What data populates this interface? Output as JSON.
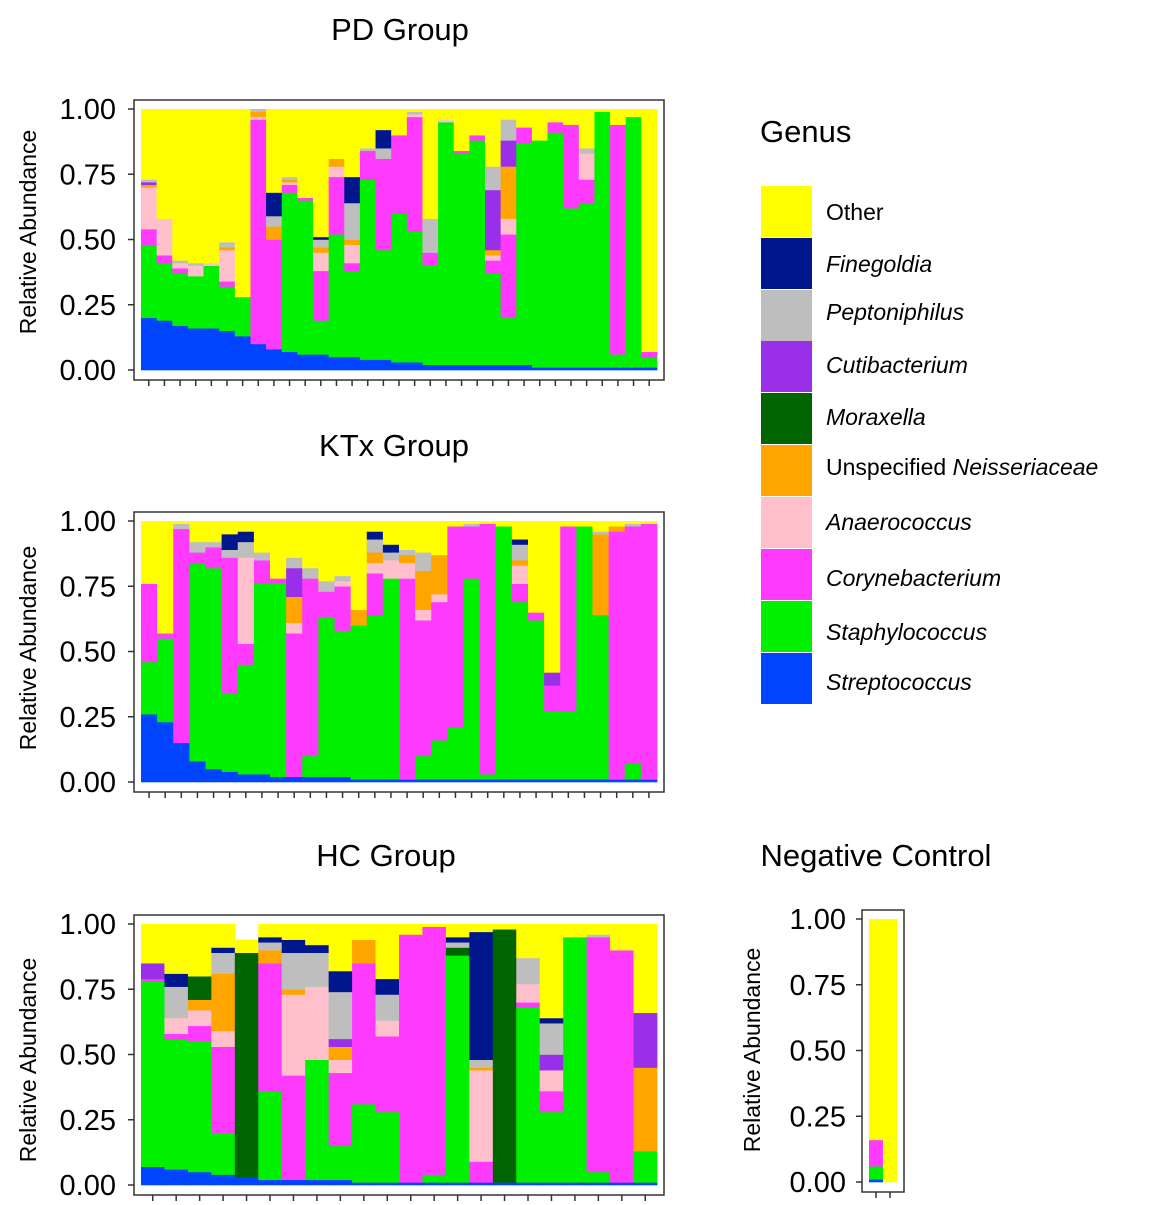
{
  "legend": {
    "title": "Genus",
    "items": [
      {
        "genus": "Other",
        "prefix": "Other",
        "name": "",
        "color": "#FFFF00"
      },
      {
        "genus": "Finegoldia",
        "prefix": "",
        "name": "Finegoldia",
        "color": "#00168C"
      },
      {
        "genus": "Peptoniphilus",
        "prefix": "",
        "name": "Peptoniphilus",
        "color": "#BEBEBE"
      },
      {
        "genus": "Cutibacterium",
        "prefix": "",
        "name": "Cutibacterium",
        "color": "#9A2FEA"
      },
      {
        "genus": "Moraxella",
        "prefix": "",
        "name": "Moraxella",
        "color": "#006400"
      },
      {
        "genus": "Neisseriaceae",
        "prefix": "Unspecified ",
        "name": "Neisseriaceae",
        "color": "#FFA500"
      },
      {
        "genus": "Anaerococcus",
        "prefix": "",
        "name": "Anaerococcus",
        "color": "#FFC0CB"
      },
      {
        "genus": "Corynebacterium",
        "prefix": "",
        "name": "Corynebacterium",
        "color": "#FF3AFF"
      },
      {
        "genus": "Staphylococcus",
        "prefix": "",
        "name": "Staphylococcus",
        "color": "#00F000"
      },
      {
        "genus": "Streptococcus",
        "prefix": "",
        "name": "Streptococcus",
        "color": "#0044FF"
      }
    ]
  },
  "chart_data": [
    {
      "type": "bar",
      "stacked": true,
      "title": "PD Group",
      "ylabel": "Relative Abundance",
      "ylim": [
        0,
        1
      ],
      "yticks": [
        "0.00",
        "0.25",
        "0.50",
        "0.75",
        "1.00"
      ],
      "stack_order": [
        "Streptococcus",
        "Staphylococcus",
        "Corynebacterium",
        "Anaerococcus",
        "Neisseriaceae",
        "Moraxella",
        "Cutibacterium",
        "Peptoniphilus",
        "Finegoldia",
        "Other"
      ],
      "samples": [
        {
          "Streptococcus": 0.2,
          "Staphylococcus": 0.28,
          "Corynebacterium": 0.06,
          "Anaerococcus": 0.16,
          "Neisseriaceae": 0.01,
          "Cutibacterium": 0.01,
          "Peptoniphilus": 0.01
        },
        {
          "Streptococcus": 0.19,
          "Staphylococcus": 0.22,
          "Corynebacterium": 0.03,
          "Anaerococcus": 0.14
        },
        {
          "Streptococcus": 0.17,
          "Staphylococcus": 0.2,
          "Corynebacterium": 0.02,
          "Anaerococcus": 0.02,
          "Peptoniphilus": 0.01
        },
        {
          "Streptococcus": 0.16,
          "Staphylococcus": 0.2,
          "Anaerococcus": 0.04,
          "Peptoniphilus": 0.01
        },
        {
          "Streptococcus": 0.16,
          "Staphylococcus": 0.24,
          "Anaerococcus": 0.01
        },
        {
          "Streptococcus": 0.15,
          "Staphylococcus": 0.17,
          "Corynebacterium": 0.02,
          "Anaerococcus": 0.12,
          "Neisseriaceae": 0.01,
          "Peptoniphilus": 0.02
        },
        {
          "Streptococcus": 0.13,
          "Staphylococcus": 0.15
        },
        {
          "Streptococcus": 0.1,
          "Corynebacterium": 0.86,
          "Anaerococcus": 0.01,
          "Neisseriaceae": 0.02,
          "Peptoniphilus": 0.01
        },
        {
          "Streptococcus": 0.08,
          "Corynebacterium": 0.42,
          "Neisseriaceae": 0.05,
          "Peptoniphilus": 0.04,
          "Finegoldia": 0.09
        },
        {
          "Streptococcus": 0.07,
          "Staphylococcus": 0.61,
          "Corynebacterium": 0.03,
          "Anaerococcus": 0.01,
          "Neisseriaceae": 0.01,
          "Peptoniphilus": 0.01
        },
        {
          "Streptococcus": 0.06,
          "Staphylococcus": 0.59,
          "Corynebacterium": 0.01
        },
        {
          "Streptococcus": 0.06,
          "Staphylococcus": 0.13,
          "Corynebacterium": 0.19,
          "Anaerococcus": 0.07,
          "Neisseriaceae": 0.02,
          "Peptoniphilus": 0.03,
          "Finegoldia": 0.01
        },
        {
          "Streptococcus": 0.05,
          "Staphylococcus": 0.47,
          "Corynebacterium": 0.22,
          "Anaerococcus": 0.04,
          "Neisseriaceae": 0.03
        },
        {
          "Streptococcus": 0.05,
          "Staphylococcus": 0.33,
          "Corynebacterium": 0.03,
          "Anaerococcus": 0.07,
          "Neisseriaceae": 0.02,
          "Peptoniphilus": 0.14,
          "Finegoldia": 0.1
        },
        {
          "Streptococcus": 0.04,
          "Staphylococcus": 0.69,
          "Corynebacterium": 0.11,
          "Peptoniphilus": 0.01
        },
        {
          "Streptococcus": 0.04,
          "Staphylococcus": 0.42,
          "Corynebacterium": 0.35,
          "Peptoniphilus": 0.04,
          "Finegoldia": 0.07
        },
        {
          "Streptococcus": 0.03,
          "Staphylococcus": 0.57,
          "Corynebacterium": 0.3
        },
        {
          "Streptococcus": 0.03,
          "Staphylococcus": 0.5,
          "Corynebacterium": 0.44,
          "Anaerococcus": 0.01,
          "Peptoniphilus": 0.01
        },
        {
          "Streptococcus": 0.02,
          "Staphylococcus": 0.38,
          "Corynebacterium": 0.05,
          "Peptoniphilus": 0.13
        },
        {
          "Streptococcus": 0.02,
          "Staphylococcus": 0.93,
          "Anaerococcus": 0.01
        },
        {
          "Streptococcus": 0.02,
          "Staphylococcus": 0.81,
          "Corynebacterium": 0.01
        },
        {
          "Streptococcus": 0.02,
          "Staphylococcus": 0.86,
          "Corynebacterium": 0.02
        },
        {
          "Streptococcus": 0.02,
          "Staphylococcus": 0.35,
          "Corynebacterium": 0.05,
          "Anaerococcus": 0.02,
          "Neisseriaceae": 0.02,
          "Cutibacterium": 0.23,
          "Peptoniphilus": 0.09
        },
        {
          "Streptococcus": 0.02,
          "Staphylococcus": 0.18,
          "Corynebacterium": 0.32,
          "Anaerococcus": 0.06,
          "Neisseriaceae": 0.2,
          "Cutibacterium": 0.1,
          "Peptoniphilus": 0.08
        },
        {
          "Streptococcus": 0.02,
          "Staphylococcus": 0.85,
          "Corynebacterium": 0.06
        },
        {
          "Streptococcus": 0.01,
          "Staphylococcus": 0.87
        },
        {
          "Streptococcus": 0.01,
          "Staphylococcus": 0.9,
          "Corynebacterium": 0.04
        },
        {
          "Streptococcus": 0.01,
          "Staphylococcus": 0.61,
          "Corynebacterium": 0.32
        },
        {
          "Streptococcus": 0.01,
          "Staphylococcus": 0.63,
          "Corynebacterium": 0.09,
          "Anaerococcus": 0.1,
          "Peptoniphilus": 0.02
        },
        {
          "Streptococcus": 0.01,
          "Staphylococcus": 0.98
        },
        {
          "Streptococcus": 0.01,
          "Staphylococcus": 0.05,
          "Corynebacterium": 0.88
        },
        {
          "Streptococcus": 0.01,
          "Staphylococcus": 0.96
        },
        {
          "Streptococcus": 0.01,
          "Staphylococcus": 0.04,
          "Corynebacterium": 0.02
        }
      ]
    },
    {
      "type": "bar",
      "stacked": true,
      "title": "KTx Group",
      "ylabel": "Relative Abundance",
      "ylim": [
        0,
        1
      ],
      "yticks": [
        "0.00",
        "0.25",
        "0.50",
        "0.75",
        "1.00"
      ],
      "stack_order": [
        "Streptococcus",
        "Staphylococcus",
        "Corynebacterium",
        "Anaerococcus",
        "Neisseriaceae",
        "Moraxella",
        "Cutibacterium",
        "Peptoniphilus",
        "Finegoldia",
        "Other"
      ],
      "samples": [
        {
          "Streptococcus": 0.26,
          "Staphylococcus": 0.2,
          "Corynebacterium": 0.3
        },
        {
          "Streptococcus": 0.23,
          "Staphylococcus": 0.32,
          "Corynebacterium": 0.02
        },
        {
          "Streptococcus": 0.15,
          "Corynebacterium": 0.82,
          "Peptoniphilus": 0.02
        },
        {
          "Streptococcus": 0.08,
          "Staphylococcus": 0.76,
          "Corynebacterium": 0.04,
          "Peptoniphilus": 0.04
        },
        {
          "Streptococcus": 0.05,
          "Staphylococcus": 0.77,
          "Corynebacterium": 0.08,
          "Peptoniphilus": 0.02
        },
        {
          "Streptococcus": 0.04,
          "Staphylococcus": 0.3,
          "Corynebacterium": 0.52,
          "Peptoniphilus": 0.03,
          "Finegoldia": 0.06
        },
        {
          "Streptococcus": 0.03,
          "Staphylococcus": 0.42,
          "Corynebacterium": 0.08,
          "Anaerococcus": 0.33,
          "Peptoniphilus": 0.06,
          "Finegoldia": 0.04
        },
        {
          "Streptococcus": 0.03,
          "Staphylococcus": 0.73,
          "Corynebacterium": 0.09,
          "Peptoniphilus": 0.03
        },
        {
          "Streptococcus": 0.02,
          "Staphylococcus": 0.74,
          "Corynebacterium": 0.02
        },
        {
          "Streptococcus": 0.02,
          "Corynebacterium": 0.55,
          "Anaerococcus": 0.04,
          "Neisseriaceae": 0.1,
          "Cutibacterium": 0.11,
          "Peptoniphilus": 0.04
        },
        {
          "Streptococcus": 0.02,
          "Staphylococcus": 0.08,
          "Corynebacterium": 0.68,
          "Peptoniphilus": 0.04
        },
        {
          "Streptococcus": 0.02,
          "Staphylococcus": 0.61,
          "Corynebacterium": 0.1,
          "Peptoniphilus": 0.04
        },
        {
          "Streptococcus": 0.02,
          "Staphylococcus": 0.56,
          "Corynebacterium": 0.17,
          "Anaerococcus": 0.02,
          "Peptoniphilus": 0.02
        },
        {
          "Streptococcus": 0.01,
          "Staphylococcus": 0.59,
          "Neisseriaceae": 0.06
        },
        {
          "Streptococcus": 0.01,
          "Staphylococcus": 0.63,
          "Corynebacterium": 0.16,
          "Anaerococcus": 0.04,
          "Neisseriaceae": 0.04,
          "Peptoniphilus": 0.05,
          "Finegoldia": 0.03
        },
        {
          "Streptococcus": 0.01,
          "Staphylococcus": 0.77,
          "Anaerococcus": 0.07,
          "Peptoniphilus": 0.03,
          "Finegoldia": 0.03
        },
        {
          "Streptococcus": 0.01,
          "Corynebacterium": 0.77,
          "Anaerococcus": 0.06,
          "Neisseriaceae": 0.03,
          "Peptoniphilus": 0.02
        },
        {
          "Streptococcus": 0.01,
          "Staphylococcus": 0.09,
          "Corynebacterium": 0.52,
          "Anaerococcus": 0.04,
          "Neisseriaceae": 0.15,
          "Peptoniphilus": 0.07
        },
        {
          "Streptococcus": 0.01,
          "Staphylococcus": 0.15,
          "Corynebacterium": 0.53,
          "Anaerococcus": 0.03,
          "Neisseriaceae": 0.15
        },
        {
          "Streptococcus": 0.01,
          "Staphylococcus": 0.2,
          "Corynebacterium": 0.77
        },
        {
          "Streptococcus": 0.01,
          "Staphylococcus": 0.77,
          "Corynebacterium": 0.2,
          "Peptoniphilus": 0.01
        },
        {
          "Streptococcus": 0.01,
          "Staphylococcus": 0.02,
          "Corynebacterium": 0.96
        },
        {
          "Streptococcus": 0.01,
          "Staphylococcus": 0.97
        },
        {
          "Streptococcus": 0.01,
          "Staphylococcus": 0.68,
          "Corynebacterium": 0.07,
          "Anaerococcus": 0.07,
          "Neisseriaceae": 0.02,
          "Peptoniphilus": 0.06,
          "Finegoldia": 0.02
        },
        {
          "Streptococcus": 0.01,
          "Staphylococcus": 0.61,
          "Corynebacterium": 0.03
        },
        {
          "Streptococcus": 0.01,
          "Staphylococcus": 0.26,
          "Corynebacterium": 0.1,
          "Cutibacterium": 0.05
        },
        {
          "Streptococcus": 0.01,
          "Staphylococcus": 0.26,
          "Corynebacterium": 0.71
        },
        {
          "Streptococcus": 0.01,
          "Staphylococcus": 0.97
        },
        {
          "Streptococcus": 0.01,
          "Staphylococcus": 0.63,
          "Neisseriaceae": 0.31,
          "Peptoniphilus": 0.01
        },
        {
          "Streptococcus": 0.01,
          "Corynebacterium": 0.95,
          "Neisseriaceae": 0.02
        },
        {
          "Streptococcus": 0.01,
          "Staphylococcus": 0.06,
          "Corynebacterium": 0.91,
          "Peptoniphilus": 0.01
        },
        {
          "Streptococcus": 0.01,
          "Corynebacterium": 0.98
        }
      ]
    },
    {
      "type": "bar",
      "stacked": true,
      "title": "HC Group",
      "ylabel": "Relative Abundance",
      "ylim": [
        0,
        1
      ],
      "yticks": [
        "0.00",
        "0.25",
        "0.50",
        "0.75",
        "1.00"
      ],
      "stack_order": [
        "Streptococcus",
        "Staphylococcus",
        "Corynebacterium",
        "Anaerococcus",
        "Neisseriaceae",
        "Moraxella",
        "Cutibacterium",
        "Peptoniphilus",
        "Finegoldia",
        "Other"
      ],
      "samples": [
        {
          "Streptococcus": 0.07,
          "Staphylococcus": 0.71,
          "Corynebacterium": 0.01,
          "Cutibacterium": 0.06
        },
        {
          "Streptococcus": 0.06,
          "Staphylococcus": 0.5,
          "Corynebacterium": 0.02,
          "Anaerococcus": 0.06,
          "Peptoniphilus": 0.12,
          "Finegoldia": 0.05
        },
        {
          "Streptococcus": 0.05,
          "Staphylococcus": 0.5,
          "Corynebacterium": 0.06,
          "Anaerococcus": 0.06,
          "Neisseriaceae": 0.04,
          "Moraxella": 0.09
        },
        {
          "Streptococcus": 0.04,
          "Staphylococcus": 0.16,
          "Corynebacterium": 0.33,
          "Anaerococcus": 0.06,
          "Neisseriaceae": 0.22,
          "Peptoniphilus": 0.08,
          "Finegoldia": 0.02
        },
        {
          "Streptococcus": 0.03,
          "Moraxella": 0.86,
          "Other": 0.05
        },
        {
          "Streptococcus": 0.02,
          "Staphylococcus": 0.34,
          "Corynebacterium": 0.49,
          "Neisseriaceae": 0.05,
          "Peptoniphilus": 0.03,
          "Finegoldia": 0.02
        },
        {
          "Streptococcus": 0.02,
          "Corynebacterium": 0.4,
          "Anaerococcus": 0.31,
          "Neisseriaceae": 0.02,
          "Peptoniphilus": 0.14,
          "Finegoldia": 0.05
        },
        {
          "Streptococcus": 0.02,
          "Staphylococcus": 0.46,
          "Anaerococcus": 0.28,
          "Peptoniphilus": 0.13,
          "Finegoldia": 0.03
        },
        {
          "Streptococcus": 0.02,
          "Staphylococcus": 0.13,
          "Corynebacterium": 0.28,
          "Anaerococcus": 0.05,
          "Neisseriaceae": 0.05,
          "Cutibacterium": 0.03,
          "Peptoniphilus": 0.18,
          "Finegoldia": 0.08
        },
        {
          "Streptococcus": 0.01,
          "Staphylococcus": 0.3,
          "Corynebacterium": 0.54,
          "Neisseriaceae": 0.09
        },
        {
          "Streptococcus": 0.01,
          "Staphylococcus": 0.27,
          "Corynebacterium": 0.29,
          "Anaerococcus": 0.06,
          "Peptoniphilus": 0.1,
          "Finegoldia": 0.06
        },
        {
          "Streptococcus": 0.01,
          "Corynebacterium": 0.95
        },
        {
          "Streptococcus": 0.01,
          "Staphylococcus": 0.03,
          "Corynebacterium": 0.95
        },
        {
          "Streptococcus": 0.01,
          "Staphylococcus": 0.87,
          "Moraxella": 0.03,
          "Peptoniphilus": 0.02,
          "Finegoldia": 0.02
        },
        {
          "Streptococcus": 0.01,
          "Corynebacterium": 0.08,
          "Anaerococcus": 0.35,
          "Neisseriaceae": 0.01,
          "Peptoniphilus": 0.03,
          "Finegoldia": 0.49
        },
        {
          "Streptococcus": 0.01,
          "Moraxella": 0.97
        },
        {
          "Streptococcus": 0.01,
          "Staphylococcus": 0.67,
          "Corynebacterium": 0.02,
          "Anaerococcus": 0.07,
          "Peptoniphilus": 0.1
        },
        {
          "Streptococcus": 0.01,
          "Staphylococcus": 0.27,
          "Corynebacterium": 0.08,
          "Anaerococcus": 0.08,
          "Cutibacterium": 0.06,
          "Peptoniphilus": 0.12,
          "Finegoldia": 0.02
        },
        {
          "Streptococcus": 0.01,
          "Staphylococcus": 0.94
        },
        {
          "Streptococcus": 0.01,
          "Staphylococcus": 0.04,
          "Corynebacterium": 0.9,
          "Peptoniphilus": 0.01
        },
        {
          "Streptococcus": 0.01,
          "Corynebacterium": 0.89
        },
        {
          "Streptococcus": 0.01,
          "Staphylococcus": 0.12,
          "Neisseriaceae": 0.32,
          "Cutibacterium": 0.21
        }
      ]
    },
    {
      "type": "bar",
      "stacked": true,
      "title": "Negative Control",
      "ylabel": "Relative Abundance",
      "ylim": [
        0,
        1
      ],
      "yticks": [
        "0.00",
        "0.25",
        "0.50",
        "0.75",
        "1.00"
      ],
      "stack_order": [
        "Streptococcus",
        "Staphylococcus",
        "Corynebacterium",
        "Anaerococcus",
        "Neisseriaceae",
        "Moraxella",
        "Cutibacterium",
        "Peptoniphilus",
        "Finegoldia",
        "Other"
      ],
      "samples": [
        {
          "Streptococcus": 0.01,
          "Staphylococcus": 0.05,
          "Corynebacterium": 0.1
        },
        {
          "Other": 1.0
        }
      ]
    }
  ]
}
